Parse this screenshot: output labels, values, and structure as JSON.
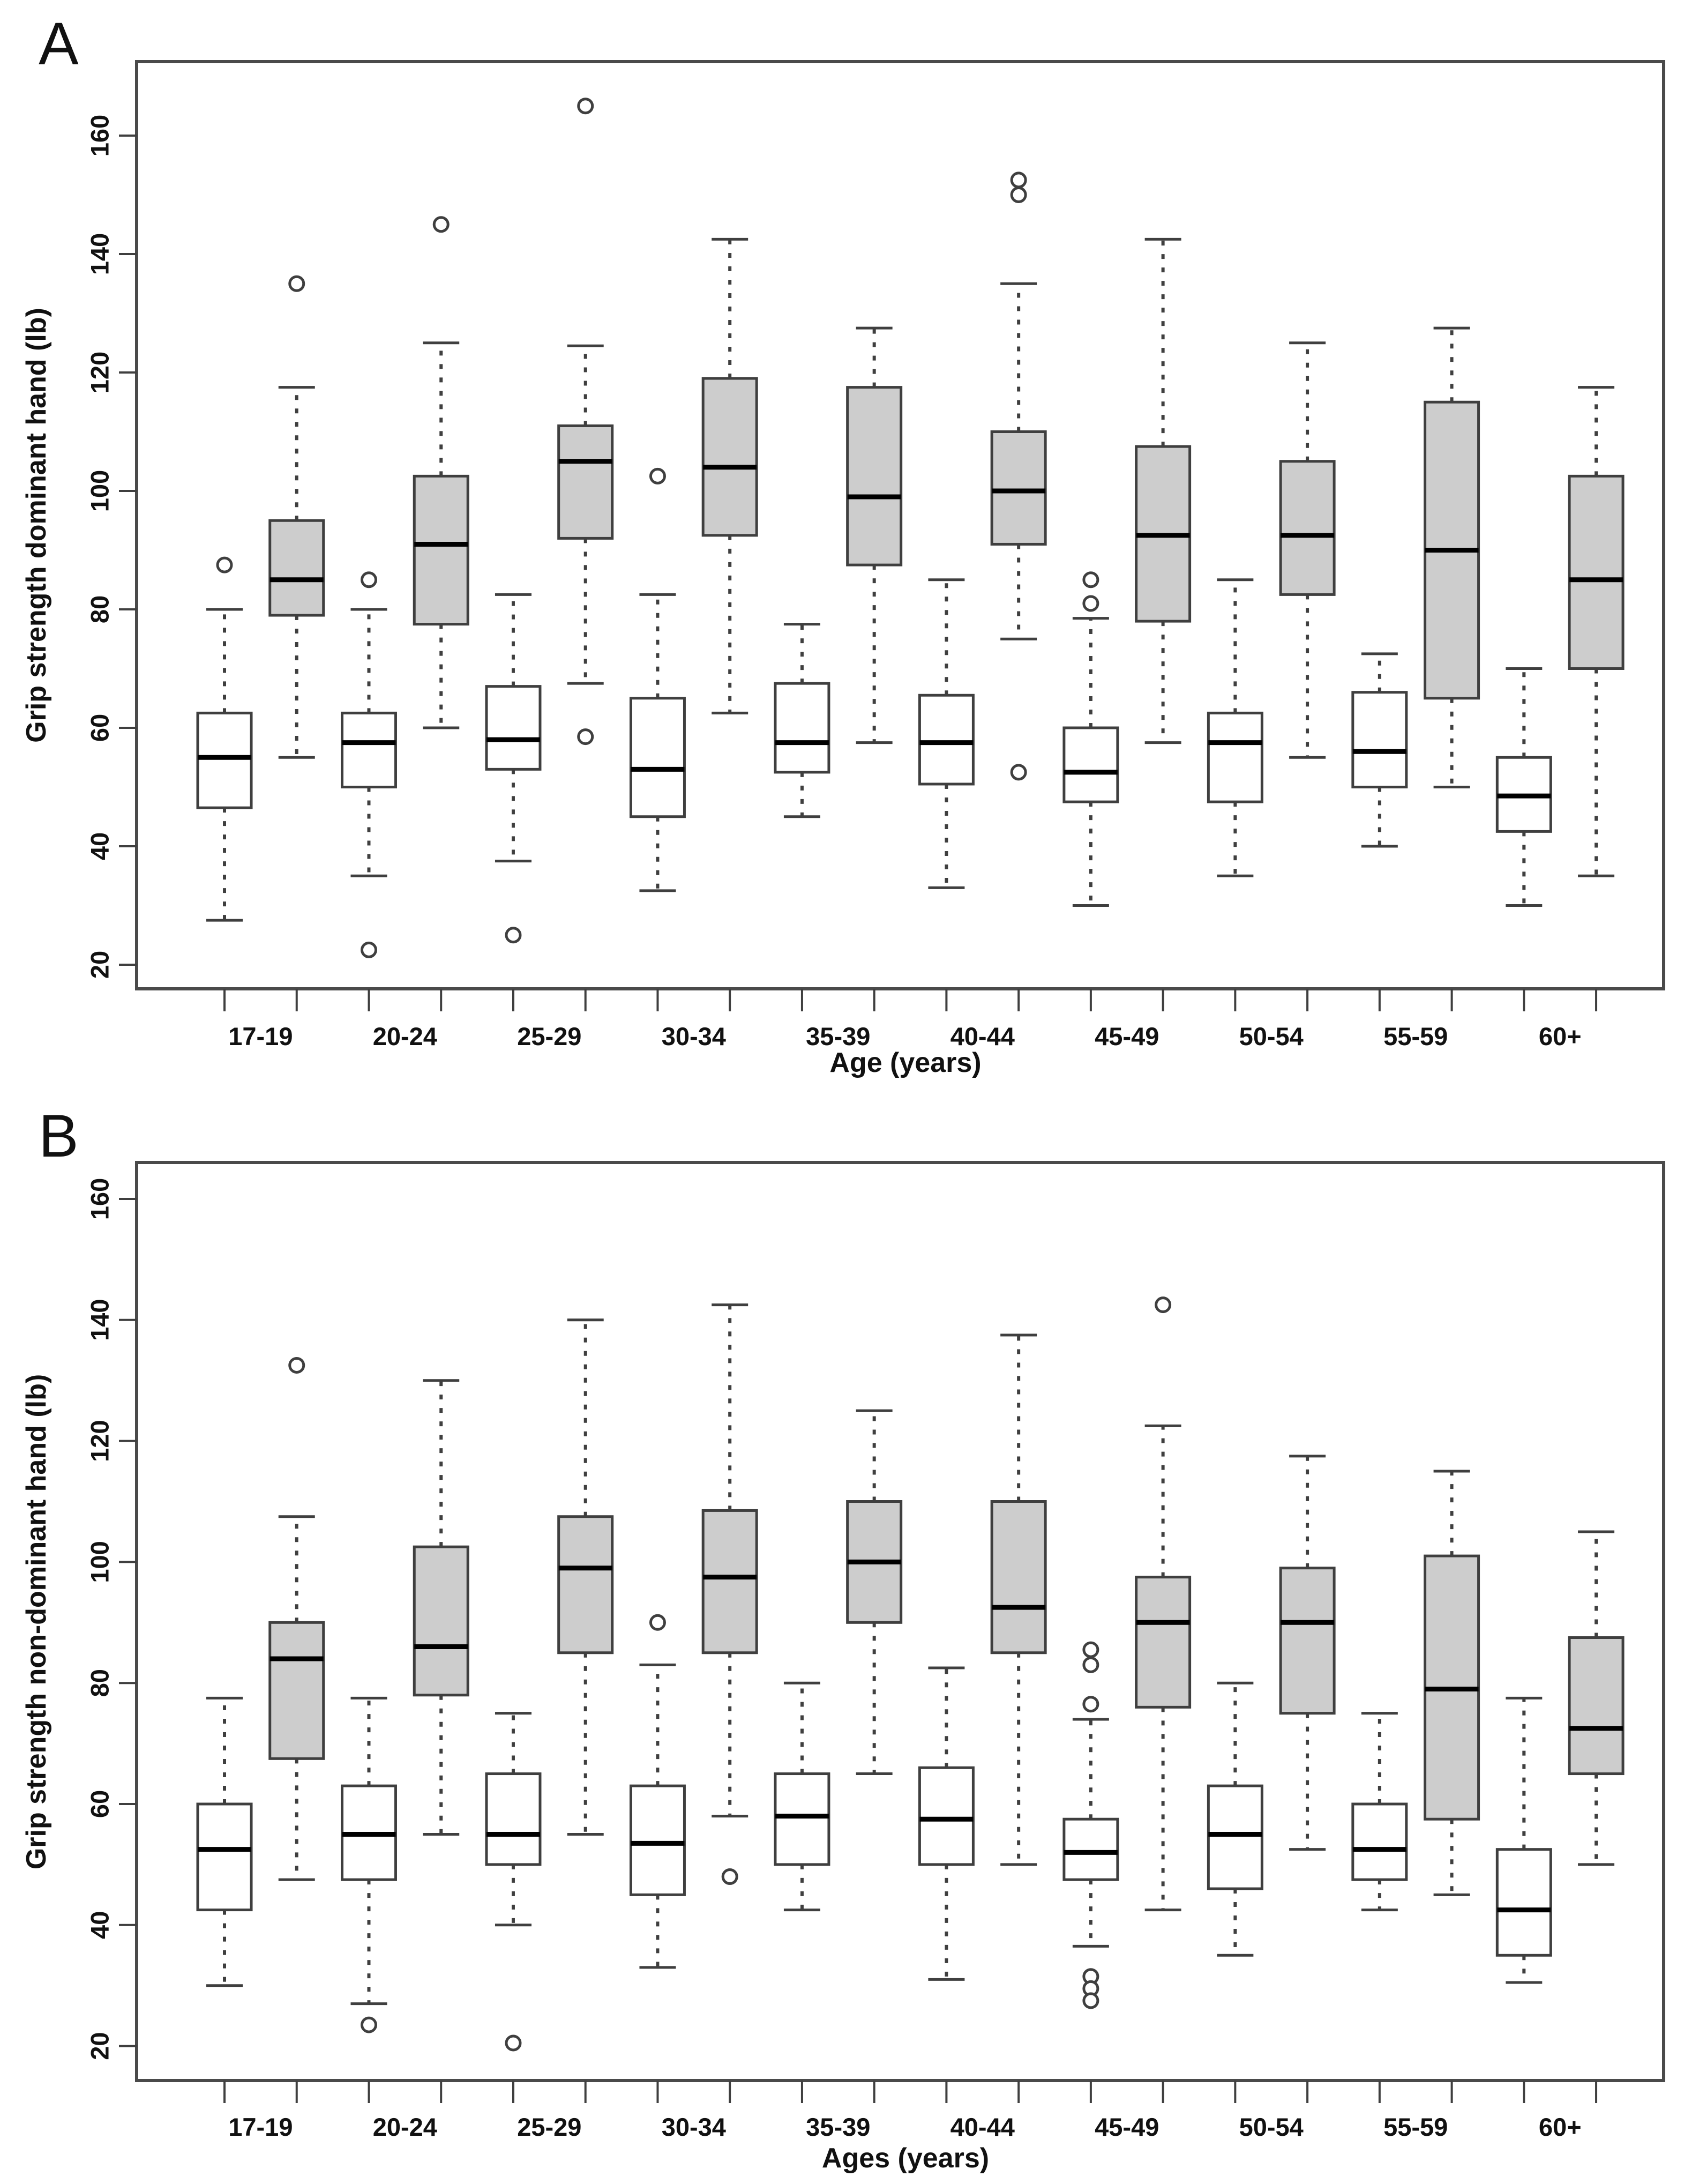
{
  "figure": {
    "background": "#ffffff",
    "panels": [
      {
        "letter": "A",
        "y_axis_label": "Grip strength dominant hand (lb)",
        "x_axis_label": "Age (years)"
      },
      {
        "letter": "B",
        "y_axis_label": "Grip strength non-dominant hand (lb)",
        "x_axis_label": "Ages (years)"
      }
    ]
  },
  "style": {
    "box_fill_white": "#ffffff",
    "box_fill_gray": "#cdcdcd",
    "line_color": "#3f3f3f",
    "median_color": "#000000",
    "border_color": "#4a4a4a"
  },
  "chart_data": [
    {
      "type": "boxplot",
      "panel": "A",
      "title": "A",
      "xlabel": "Age (years)",
      "ylabel": "Grip strength dominant hand (lb)",
      "categories": [
        "17-19",
        "20-24",
        "25-29",
        "30-34",
        "35-39",
        "40-44",
        "45-49",
        "50-54",
        "55-59",
        "60+"
      ],
      "y_ticks": [
        20,
        40,
        60,
        80,
        100,
        120,
        140,
        160
      ],
      "ylim": [
        15,
        172
      ],
      "grid": false,
      "legend": "none",
      "series": [
        {
          "name": "white",
          "fill": "#ffffff",
          "boxes": [
            {
              "low": 27.5,
              "q1": 46.5,
              "median": 55,
              "q3": 62.5,
              "high": 80,
              "outliers": [
                87.5
              ]
            },
            {
              "low": 35,
              "q1": 50,
              "median": 57.5,
              "q3": 62.5,
              "high": 80,
              "outliers": [
                85,
                22.5
              ]
            },
            {
              "low": 37.5,
              "q1": 53,
              "median": 58,
              "q3": 67,
              "high": 82.5,
              "outliers": [
                25
              ]
            },
            {
              "low": 32.5,
              "q1": 45,
              "median": 53,
              "q3": 65,
              "high": 82.5,
              "outliers": [
                102.5
              ]
            },
            {
              "low": 45,
              "q1": 52.5,
              "median": 57.5,
              "q3": 67.5,
              "high": 77.5,
              "outliers": []
            },
            {
              "low": 33,
              "q1": 50.5,
              "median": 57.5,
              "q3": 65.5,
              "high": 85,
              "outliers": []
            },
            {
              "low": 30,
              "q1": 47.5,
              "median": 52.5,
              "q3": 60,
              "high": 78.5,
              "outliers": [
                85,
                81
              ]
            },
            {
              "low": 35,
              "q1": 47.5,
              "median": 57.5,
              "q3": 62.5,
              "high": 85,
              "outliers": []
            },
            {
              "low": 40,
              "q1": 50,
              "median": 56,
              "q3": 66,
              "high": 72.5,
              "outliers": []
            },
            {
              "low": 30,
              "q1": 42.5,
              "median": 48.5,
              "q3": 55,
              "high": 70,
              "outliers": []
            }
          ]
        },
        {
          "name": "gray",
          "fill": "#cdcdcd",
          "boxes": [
            {
              "low": 55,
              "q1": 79,
              "median": 85,
              "q3": 95,
              "high": 117.5,
              "outliers": [
                135
              ]
            },
            {
              "low": 60,
              "q1": 77.5,
              "median": 91,
              "q3": 102.5,
              "high": 125,
              "outliers": [
                145
              ]
            },
            {
              "low": 67.5,
              "q1": 92,
              "median": 105,
              "q3": 111,
              "high": 124.5,
              "outliers": [
                165,
                58.5
              ]
            },
            {
              "low": 62.5,
              "q1": 92.5,
              "median": 104,
              "q3": 119,
              "high": 142.5,
              "outliers": []
            },
            {
              "low": 57.5,
              "q1": 87.5,
              "median": 99,
              "q3": 117.5,
              "high": 127.5,
              "outliers": []
            },
            {
              "low": 75,
              "q1": 91,
              "median": 100,
              "q3": 110,
              "high": 135,
              "outliers": [
                152.5,
                150,
                52.5
              ]
            },
            {
              "low": 57.5,
              "q1": 78,
              "median": 92.5,
              "q3": 107.5,
              "high": 142.5,
              "outliers": []
            },
            {
              "low": 55,
              "q1": 82.5,
              "median": 92.5,
              "q3": 105,
              "high": 125,
              "outliers": []
            },
            {
              "low": 50,
              "q1": 65,
              "median": 90,
              "q3": 115,
              "high": 127.5,
              "outliers": []
            },
            {
              "low": 35,
              "q1": 70,
              "median": 85,
              "q3": 102.5,
              "high": 117.5,
              "outliers": []
            }
          ]
        }
      ]
    },
    {
      "type": "boxplot",
      "panel": "B",
      "title": "B",
      "xlabel": "Ages (years)",
      "ylabel": "Grip strength non-dominant hand (lb)",
      "categories": [
        "17-19",
        "20-24",
        "25-29",
        "30-34",
        "35-39",
        "40-44",
        "45-49",
        "50-54",
        "55-59",
        "60+"
      ],
      "y_ticks": [
        20,
        40,
        60,
        80,
        100,
        120,
        140,
        160
      ],
      "ylim": [
        14,
        166
      ],
      "grid": false,
      "legend": "none",
      "series": [
        {
          "name": "white",
          "fill": "#ffffff",
          "boxes": [
            {
              "low": 30,
              "q1": 42.5,
              "median": 52.5,
              "q3": 60,
              "high": 77.5,
              "outliers": []
            },
            {
              "low": 27,
              "q1": 47.5,
              "median": 55,
              "q3": 63,
              "high": 77.5,
              "outliers": [
                23.5
              ]
            },
            {
              "low": 40,
              "q1": 50,
              "median": 55,
              "q3": 65,
              "high": 75,
              "outliers": [
                20.5
              ]
            },
            {
              "low": 33,
              "q1": 45,
              "median": 53.5,
              "q3": 63,
              "high": 83,
              "outliers": [
                90
              ]
            },
            {
              "low": 42.5,
              "q1": 50,
              "median": 58,
              "q3": 65,
              "high": 80,
              "outliers": []
            },
            {
              "low": 31,
              "q1": 50,
              "median": 57.5,
              "q3": 66,
              "high": 82.5,
              "outliers": []
            },
            {
              "low": 36.5,
              "q1": 47.5,
              "median": 52,
              "q3": 57.5,
              "high": 74,
              "outliers": [
                85.5,
                83,
                76.5,
                31.5,
                29.5,
                27.5
              ]
            },
            {
              "low": 35,
              "q1": 46,
              "median": 55,
              "q3": 63,
              "high": 80,
              "outliers": []
            },
            {
              "low": 42.5,
              "q1": 47.5,
              "median": 52.5,
              "q3": 60,
              "high": 75,
              "outliers": []
            },
            {
              "low": 30.5,
              "q1": 35,
              "median": 42.5,
              "q3": 52.5,
              "high": 77.5,
              "outliers": []
            }
          ]
        },
        {
          "name": "gray",
          "fill": "#cdcdcd",
          "boxes": [
            {
              "low": 47.5,
              "q1": 67.5,
              "median": 84,
              "q3": 90,
              "high": 107.5,
              "outliers": [
                132.5
              ]
            },
            {
              "low": 55,
              "q1": 78,
              "median": 86,
              "q3": 102.5,
              "high": 130,
              "outliers": []
            },
            {
              "low": 55,
              "q1": 85,
              "median": 99,
              "q3": 107.5,
              "high": 140,
              "outliers": []
            },
            {
              "low": 58,
              "q1": 85,
              "median": 97.5,
              "q3": 108.5,
              "high": 142.5,
              "outliers": [
                48
              ]
            },
            {
              "low": 65,
              "q1": 90,
              "median": 100,
              "q3": 110,
              "high": 125,
              "outliers": []
            },
            {
              "low": 50,
              "q1": 85,
              "median": 92.5,
              "q3": 110,
              "high": 137.5,
              "outliers": []
            },
            {
              "low": 42.5,
              "q1": 76,
              "median": 90,
              "q3": 97.5,
              "high": 122.5,
              "outliers": [
                142.5
              ]
            },
            {
              "low": 52.5,
              "q1": 75,
              "median": 90,
              "q3": 99,
              "high": 117.5,
              "outliers": []
            },
            {
              "low": 45,
              "q1": 57.5,
              "median": 79,
              "q3": 101,
              "high": 115,
              "outliers": []
            },
            {
              "low": 50,
              "q1": 65,
              "median": 72.5,
              "q3": 87.5,
              "high": 105,
              "outliers": []
            }
          ]
        }
      ]
    }
  ]
}
